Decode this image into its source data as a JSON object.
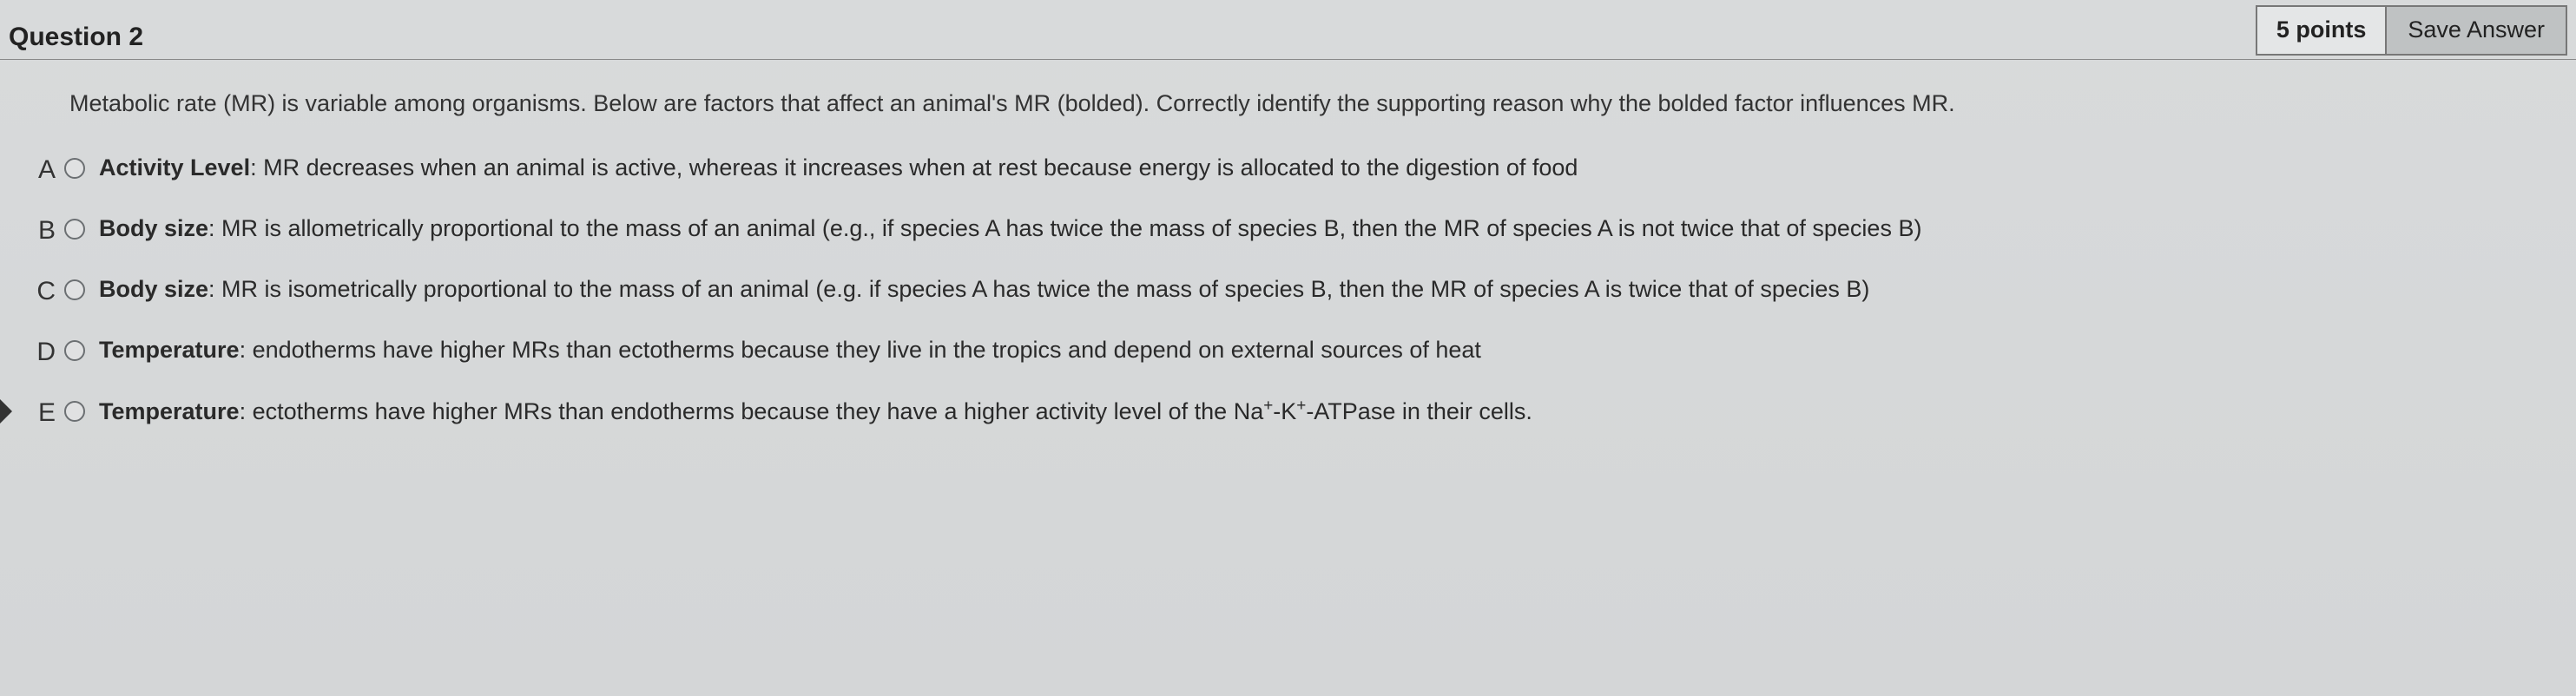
{
  "header": {
    "title": "Question 2",
    "points": "5 points",
    "save_label": "Save Answer"
  },
  "stem": "Metabolic rate (MR) is variable among organisms. Below are factors that affect an animal's MR (bolded). Correctly identify the supporting reason why the bolded factor influences MR.",
  "options": [
    {
      "letter": "A",
      "bold": "Activity Level",
      "rest": ": MR decreases when an animal is active, whereas it increases when at rest because energy is allocated to the digestion of food"
    },
    {
      "letter": "B",
      "bold": "Body size",
      "rest": ": MR is allometrically proportional to the mass of an animal (e.g., if species A has twice the mass of species B, then the MR of species A is not twice that of species B)"
    },
    {
      "letter": "C",
      "bold": "Body size",
      "rest": ": MR is isometrically proportional to the mass of an animal (e.g. if species A has twice the mass of species B, then the MR of species A is twice that of species B)"
    },
    {
      "letter": "D",
      "bold": "Temperature",
      "rest": ": endotherms have higher MRs than ectotherms because they live in the tropics and depend on external sources of heat"
    },
    {
      "letter": "E",
      "bold": "Temperature",
      "rest_html": ": ectotherms have higher MRs than endotherms because they have a higher activity level of the Na<sup>+</sup>-K<sup>+</sup>-ATPase in their cells."
    }
  ],
  "colors": {
    "background": "#d6d8d9",
    "text": "#222222",
    "header_border": "#888888",
    "radio_border": "#6b6f72",
    "save_bg": "#bfc2c3",
    "box_border": "#777777"
  }
}
